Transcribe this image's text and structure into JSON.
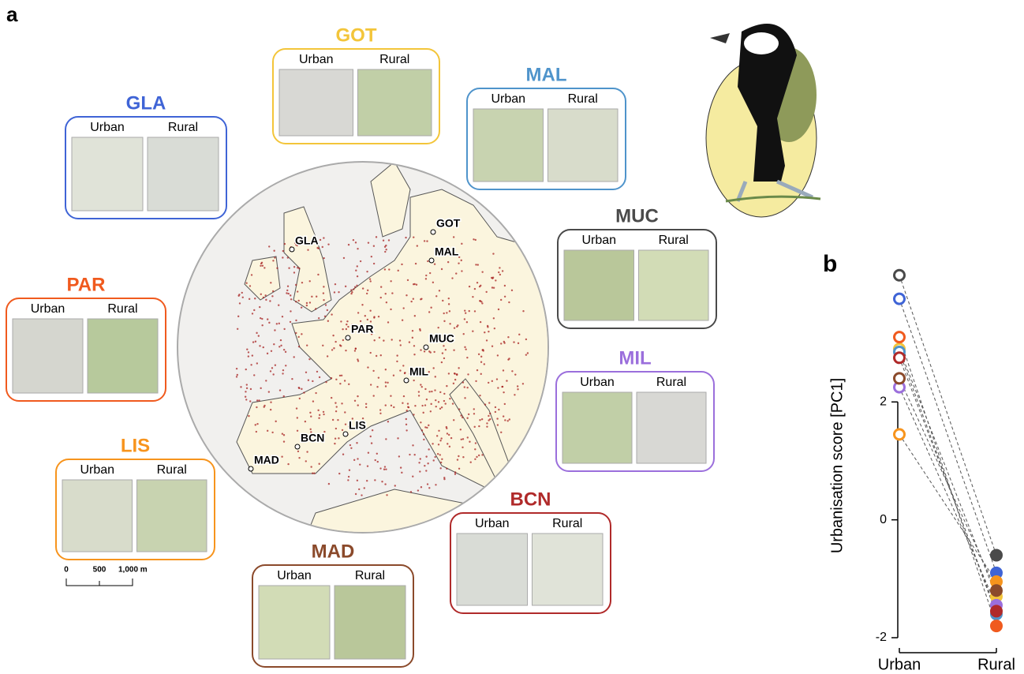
{
  "panel_a": {
    "label": "a",
    "box_labels": [
      "Urban",
      "Rural"
    ],
    "cities": [
      {
        "code": "GOT",
        "color": "#f3c53a"
      },
      {
        "code": "MAL",
        "color": "#4f94cb"
      },
      {
        "code": "GLA",
        "color": "#3f64d6"
      },
      {
        "code": "MUC",
        "color": "#4a4a4a"
      },
      {
        "code": "PAR",
        "color": "#f05a1e"
      },
      {
        "code": "MIL",
        "color": "#9b6fdc"
      },
      {
        "code": "LIS",
        "color": "#f7941d"
      },
      {
        "code": "BCN",
        "color": "#b02a2a"
      },
      {
        "code": "MAD",
        "color": "#8b4a2b"
      }
    ],
    "scale_bar": [
      "0",
      "500",
      "1,000 m"
    ]
  },
  "chart_data": {
    "type": "slope",
    "label": "b",
    "ylabel": "Urbanisation score [PC1]",
    "categories": [
      "Urban",
      "Rural"
    ],
    "ylim": [
      -2,
      4.2
    ],
    "yticks": [
      -2,
      0,
      2
    ],
    "series": [
      {
        "color": "#f3c53a",
        "values": [
          2.9,
          -1.3
        ]
      },
      {
        "color": "#4f94cb",
        "values": [
          2.85,
          -1.6
        ]
      },
      {
        "color": "#3f64d6",
        "values": [
          3.75,
          -0.9
        ]
      },
      {
        "color": "#4a4a4a",
        "values": [
          4.15,
          -0.6
        ]
      },
      {
        "color": "#f05a1e",
        "values": [
          3.1,
          -1.8
        ]
      },
      {
        "color": "#9b6fdc",
        "values": [
          2.25,
          -1.45
        ]
      },
      {
        "color": "#f7941d",
        "values": [
          1.45,
          -1.05
        ]
      },
      {
        "color": "#b02a2a",
        "values": [
          2.75,
          -1.55
        ]
      },
      {
        "color": "#8b4a2b",
        "values": [
          2.4,
          -1.2
        ]
      }
    ]
  }
}
